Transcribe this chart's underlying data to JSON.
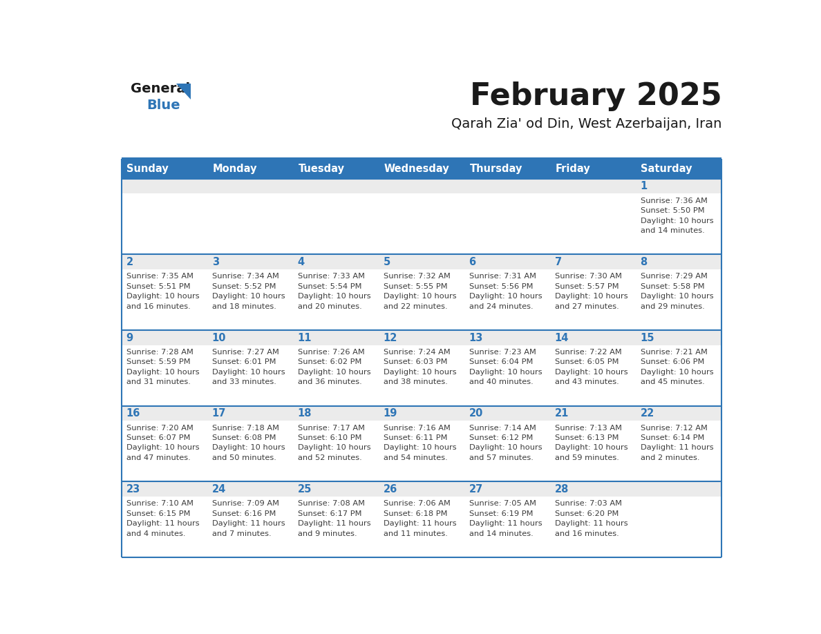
{
  "title": "February 2025",
  "subtitle": "Qarah Zia' od Din, West Azerbaijan, Iran",
  "days_of_week": [
    "Sunday",
    "Monday",
    "Tuesday",
    "Wednesday",
    "Thursday",
    "Friday",
    "Saturday"
  ],
  "header_bg": "#2E75B6",
  "header_text_color": "#FFFFFF",
  "row_bg_daynum": "#EBEBEB",
  "row_bg_info": "#FFFFFF",
  "separator_color": "#2E75B6",
  "day_number_color": "#2E75B6",
  "cell_text_color": "#3C3C3C",
  "title_color": "#1A1A1A",
  "subtitle_color": "#1A1A1A",
  "logo_general_color": "#1A1A1A",
  "logo_blue_color": "#2E75B6",
  "calendar": [
    [
      {
        "day": null,
        "info": null
      },
      {
        "day": null,
        "info": null
      },
      {
        "day": null,
        "info": null
      },
      {
        "day": null,
        "info": null
      },
      {
        "day": null,
        "info": null
      },
      {
        "day": null,
        "info": null
      },
      {
        "day": 1,
        "info": "Sunrise: 7:36 AM\nSunset: 5:50 PM\nDaylight: 10 hours\nand 14 minutes."
      }
    ],
    [
      {
        "day": 2,
        "info": "Sunrise: 7:35 AM\nSunset: 5:51 PM\nDaylight: 10 hours\nand 16 minutes."
      },
      {
        "day": 3,
        "info": "Sunrise: 7:34 AM\nSunset: 5:52 PM\nDaylight: 10 hours\nand 18 minutes."
      },
      {
        "day": 4,
        "info": "Sunrise: 7:33 AM\nSunset: 5:54 PM\nDaylight: 10 hours\nand 20 minutes."
      },
      {
        "day": 5,
        "info": "Sunrise: 7:32 AM\nSunset: 5:55 PM\nDaylight: 10 hours\nand 22 minutes."
      },
      {
        "day": 6,
        "info": "Sunrise: 7:31 AM\nSunset: 5:56 PM\nDaylight: 10 hours\nand 24 minutes."
      },
      {
        "day": 7,
        "info": "Sunrise: 7:30 AM\nSunset: 5:57 PM\nDaylight: 10 hours\nand 27 minutes."
      },
      {
        "day": 8,
        "info": "Sunrise: 7:29 AM\nSunset: 5:58 PM\nDaylight: 10 hours\nand 29 minutes."
      }
    ],
    [
      {
        "day": 9,
        "info": "Sunrise: 7:28 AM\nSunset: 5:59 PM\nDaylight: 10 hours\nand 31 minutes."
      },
      {
        "day": 10,
        "info": "Sunrise: 7:27 AM\nSunset: 6:01 PM\nDaylight: 10 hours\nand 33 minutes."
      },
      {
        "day": 11,
        "info": "Sunrise: 7:26 AM\nSunset: 6:02 PM\nDaylight: 10 hours\nand 36 minutes."
      },
      {
        "day": 12,
        "info": "Sunrise: 7:24 AM\nSunset: 6:03 PM\nDaylight: 10 hours\nand 38 minutes."
      },
      {
        "day": 13,
        "info": "Sunrise: 7:23 AM\nSunset: 6:04 PM\nDaylight: 10 hours\nand 40 minutes."
      },
      {
        "day": 14,
        "info": "Sunrise: 7:22 AM\nSunset: 6:05 PM\nDaylight: 10 hours\nand 43 minutes."
      },
      {
        "day": 15,
        "info": "Sunrise: 7:21 AM\nSunset: 6:06 PM\nDaylight: 10 hours\nand 45 minutes."
      }
    ],
    [
      {
        "day": 16,
        "info": "Sunrise: 7:20 AM\nSunset: 6:07 PM\nDaylight: 10 hours\nand 47 minutes."
      },
      {
        "day": 17,
        "info": "Sunrise: 7:18 AM\nSunset: 6:08 PM\nDaylight: 10 hours\nand 50 minutes."
      },
      {
        "day": 18,
        "info": "Sunrise: 7:17 AM\nSunset: 6:10 PM\nDaylight: 10 hours\nand 52 minutes."
      },
      {
        "day": 19,
        "info": "Sunrise: 7:16 AM\nSunset: 6:11 PM\nDaylight: 10 hours\nand 54 minutes."
      },
      {
        "day": 20,
        "info": "Sunrise: 7:14 AM\nSunset: 6:12 PM\nDaylight: 10 hours\nand 57 minutes."
      },
      {
        "day": 21,
        "info": "Sunrise: 7:13 AM\nSunset: 6:13 PM\nDaylight: 10 hours\nand 59 minutes."
      },
      {
        "day": 22,
        "info": "Sunrise: 7:12 AM\nSunset: 6:14 PM\nDaylight: 11 hours\nand 2 minutes."
      }
    ],
    [
      {
        "day": 23,
        "info": "Sunrise: 7:10 AM\nSunset: 6:15 PM\nDaylight: 11 hours\nand 4 minutes."
      },
      {
        "day": 24,
        "info": "Sunrise: 7:09 AM\nSunset: 6:16 PM\nDaylight: 11 hours\nand 7 minutes."
      },
      {
        "day": 25,
        "info": "Sunrise: 7:08 AM\nSunset: 6:17 PM\nDaylight: 11 hours\nand 9 minutes."
      },
      {
        "day": 26,
        "info": "Sunrise: 7:06 AM\nSunset: 6:18 PM\nDaylight: 11 hours\nand 11 minutes."
      },
      {
        "day": 27,
        "info": "Sunrise: 7:05 AM\nSunset: 6:19 PM\nDaylight: 11 hours\nand 14 minutes."
      },
      {
        "day": 28,
        "info": "Sunrise: 7:03 AM\nSunset: 6:20 PM\nDaylight: 11 hours\nand 16 minutes."
      },
      {
        "day": null,
        "info": null
      }
    ]
  ]
}
